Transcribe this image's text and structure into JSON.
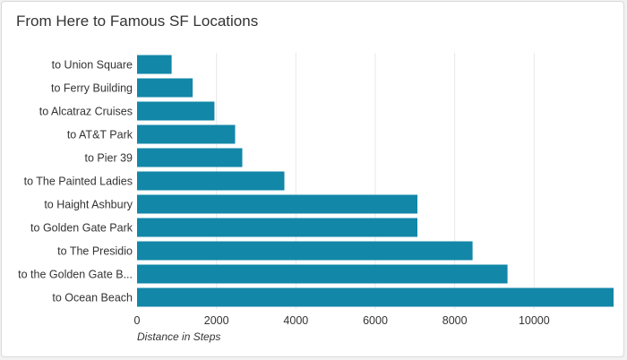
{
  "title": "From Here to Famous SF Locations",
  "chart_data": {
    "type": "bar",
    "orientation": "horizontal",
    "title": "From Here to Famous SF Locations",
    "xlabel": "Distance in Steps",
    "ylabel": "",
    "categories": [
      "to Union Square",
      "to Ferry Building",
      "to Alcatraz Cruises",
      "to AT&T Park",
      "to Pier 39",
      "to The Painted Ladies",
      "to Haight Ashbury",
      "to Golden Gate Park",
      "to The Presidio",
      "to the Golden Gate B...",
      "to Ocean Beach"
    ],
    "values": [
      870,
      1400,
      1950,
      2470,
      2650,
      3710,
      7060,
      7060,
      8450,
      9330,
      12000
    ],
    "xlim": [
      0,
      12000
    ],
    "xticks": [
      0,
      2000,
      4000,
      6000,
      8000,
      10000
    ],
    "grid": "vertical",
    "bar_color": "#1287a8",
    "grid_color": "#e8e8e8"
  }
}
